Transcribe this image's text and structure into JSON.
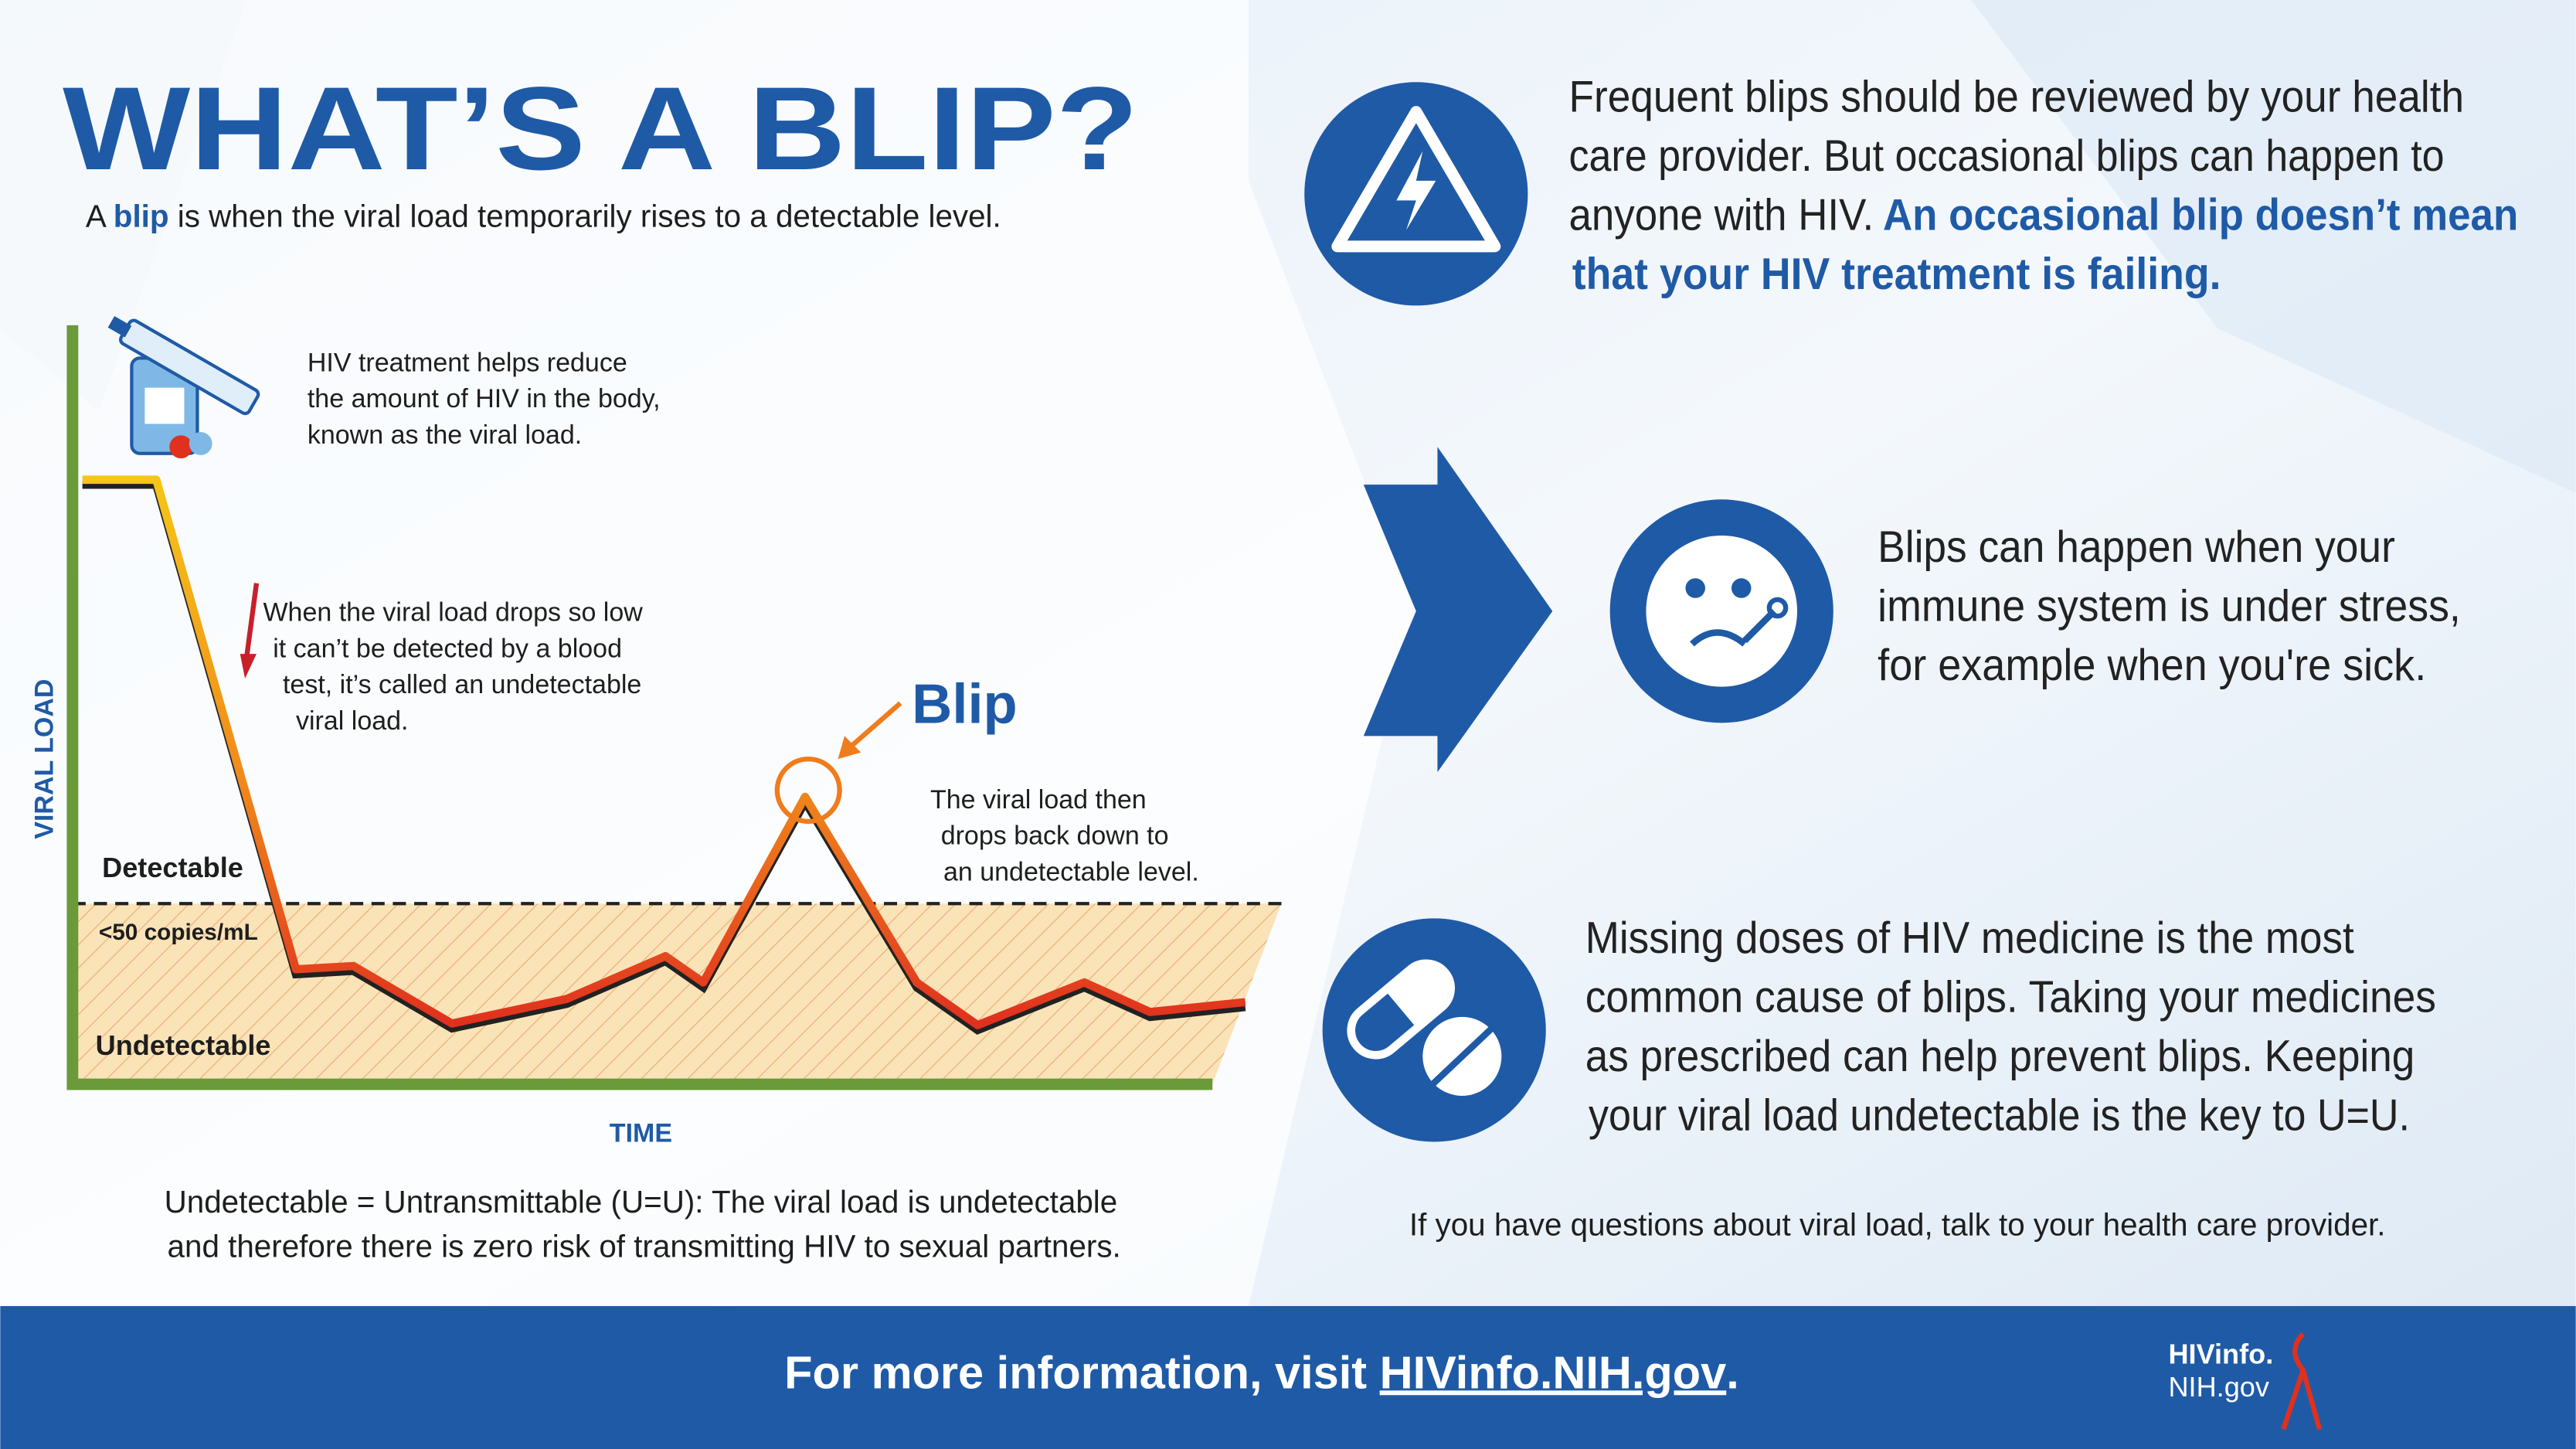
{
  "title": "WHAT’S A BLIP?",
  "subtitle": [
    "A ",
    "blip",
    " is when the viral load temporarily rises to a detectable level."
  ],
  "graph": {
    "y_axis_label": "VIRAL LOAD",
    "x_axis_label": "TIME",
    "level_labels": [
      "Detectable",
      "<50 copies/mL",
      "Undetectable"
    ],
    "blip_label": "Blip",
    "notes": [
      [
        "HIV treatment helps reduce",
        "the amount of HIV in the body,",
        "known as the viral load."
      ],
      [
        "When the viral load drops so low",
        "it can’t be detected by a blood",
        "test, it’s called an undetectable",
        "viral load."
      ],
      [
        "The viral load then",
        "drops back down to",
        "an undetectable level."
      ]
    ]
  },
  "uu_note": [
    "Undetectable = Untransmittable (U=U): The viral load is undetectable",
    "and therefore there is zero risk of transmitting HIV to sexual partners."
  ],
  "points": [
    {
      "lines": [
        "Frequent blips should be reviewed by your health",
        "care provider. But occasional blips can happen to",
        "anyone with HIV."
      ],
      "emphasis": [
        "An occasional blip doesn’t mean",
        "that your HIV treatment is failing."
      ]
    },
    {
      "lines": [
        "Blips can happen when your",
        "immune system is under stress,",
        "for example when you're sick."
      ]
    },
    {
      "lines": [
        "Missing doses of HIV medicine is the most",
        "common cause of blips. Taking your medicines",
        "as prescribed can help prevent blips. Keeping",
        "your viral load undetectable is the key to U=U."
      ]
    }
  ],
  "provider_note": "If you have questions about viral load, talk to your health care provider.",
  "footer": {
    "text": "For more information, visit ",
    "link": "HIVinfo.NIH.gov",
    "end": "."
  },
  "logo": [
    "HIVinfo.",
    "NIH.gov"
  ]
}
